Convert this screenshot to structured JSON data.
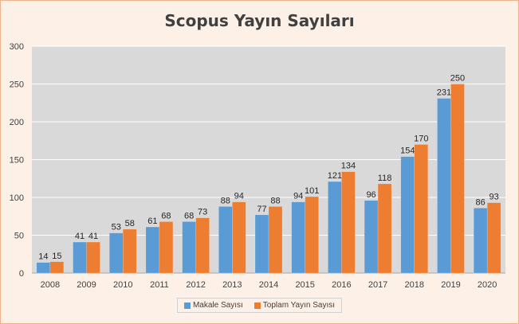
{
  "chart_data": {
    "type": "bar",
    "title": "Scopus Yayın Sayıları",
    "categories": [
      "2008",
      "2009",
      "2010",
      "2011",
      "2012",
      "2013",
      "2014",
      "2015",
      "2016",
      "2017",
      "2018",
      "2019",
      "2020"
    ],
    "series": [
      {
        "name": "Makale Sayısı",
        "color": "#5b9bd5",
        "values": [
          14,
          41,
          53,
          61,
          68,
          88,
          77,
          94,
          121,
          96,
          154,
          231,
          86
        ]
      },
      {
        "name": "Toplam Yayın Sayısı",
        "color": "#ed7d31",
        "values": [
          15,
          41,
          58,
          68,
          73,
          94,
          88,
          101,
          134,
          118,
          170,
          250,
          93
        ]
      }
    ],
    "ylim": [
      0,
      300
    ],
    "yticks": [
      0,
      50,
      100,
      150,
      200,
      250,
      300
    ],
    "grid": true,
    "legend": "bottom",
    "colors": {
      "plot_background": "#d9d9d9",
      "chart_background": "#fdf0e6",
      "border": "#f0b28a",
      "gridline": "#ffffff"
    }
  }
}
